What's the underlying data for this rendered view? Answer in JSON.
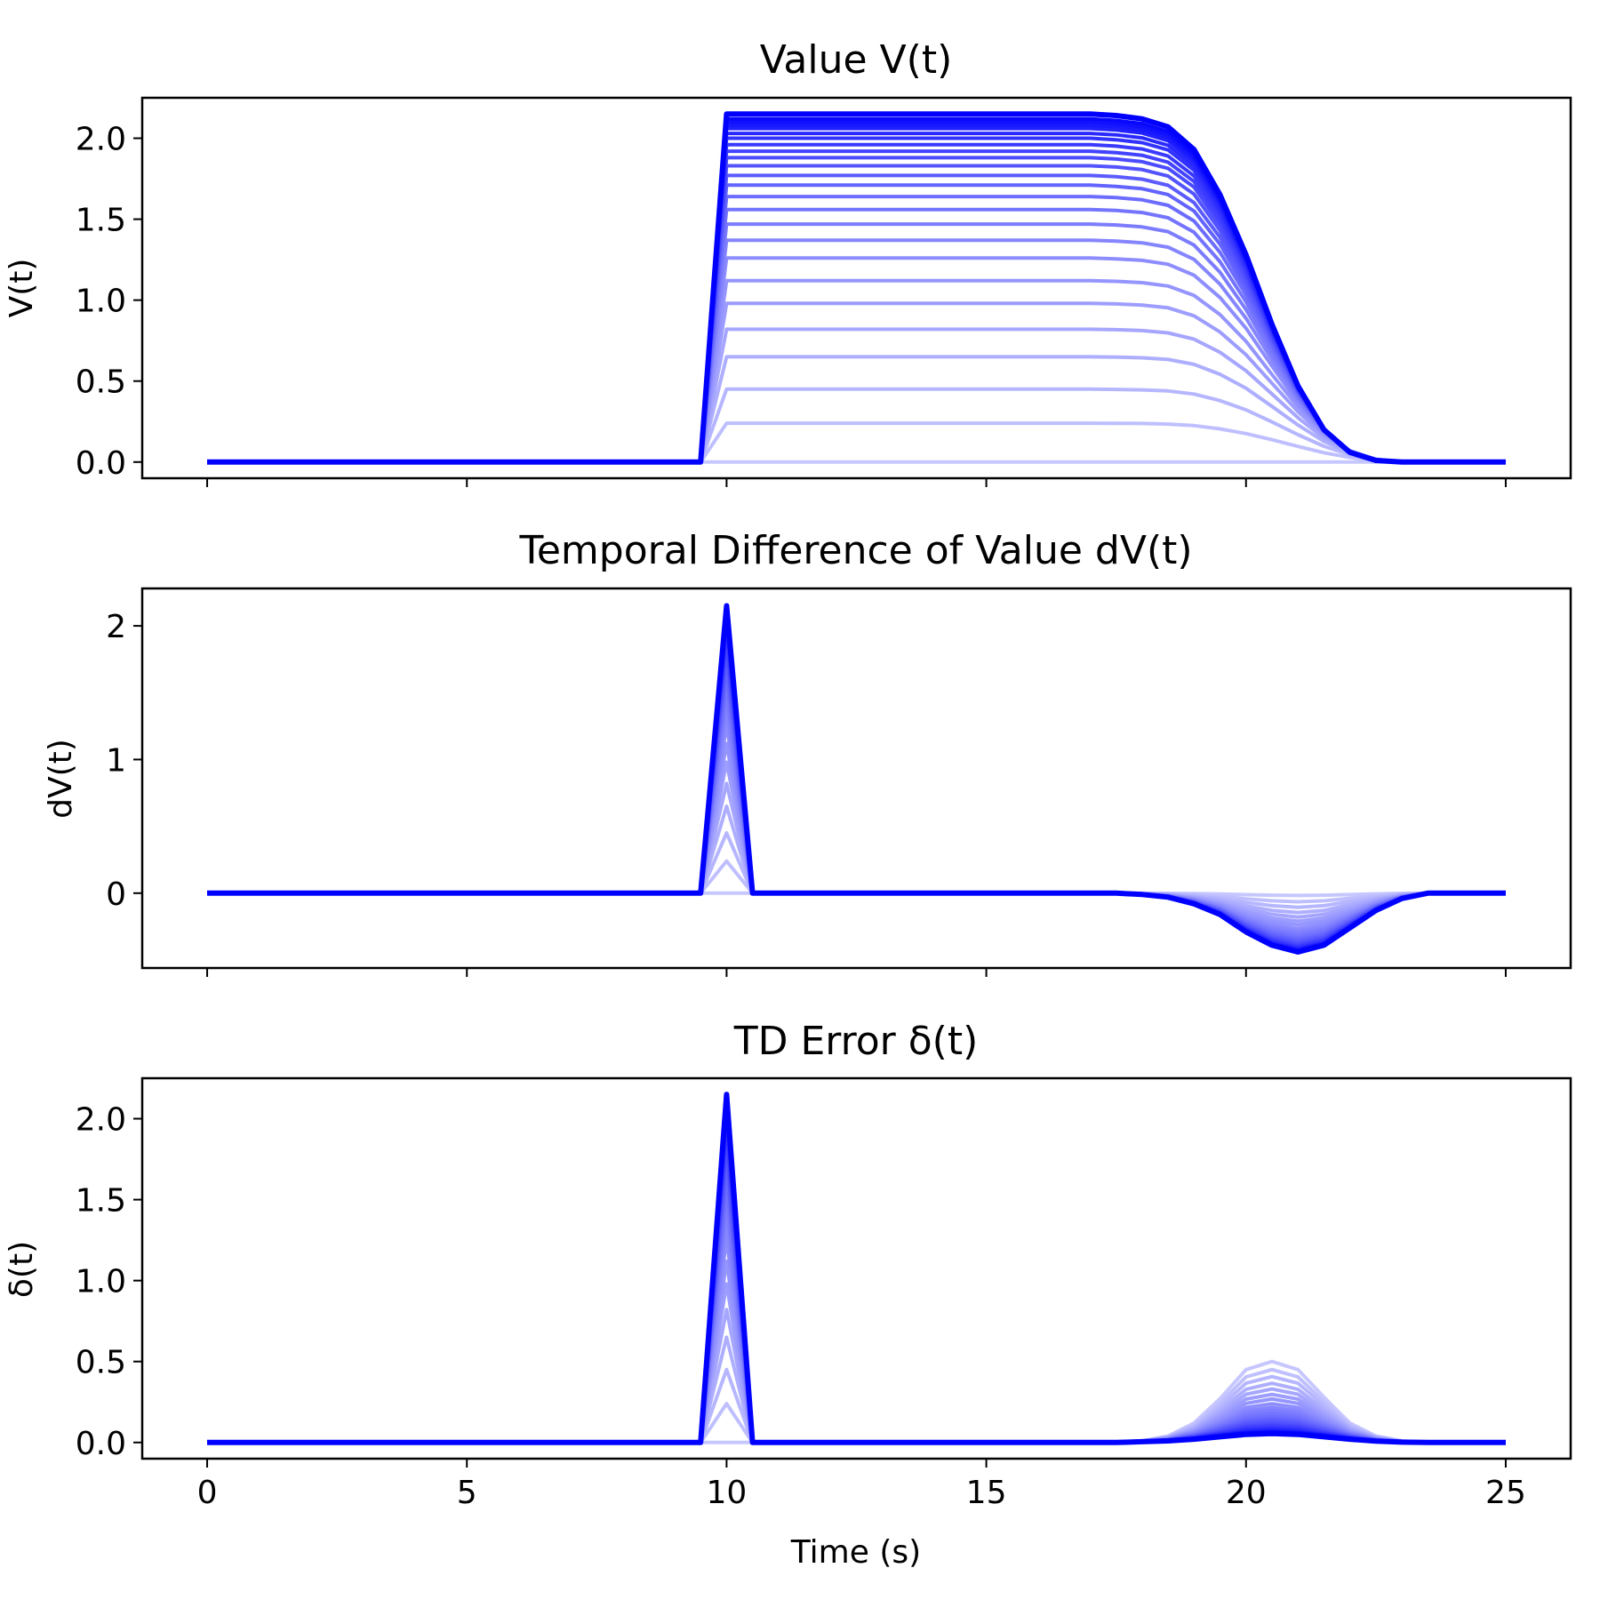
{
  "chart_data": [
    {
      "type": "line",
      "title": "Value V(t)",
      "ylabel": "V(t)",
      "xlabel": "",
      "xlim": [
        -1.25,
        26.25
      ],
      "ylim": [
        -0.1,
        2.25
      ],
      "xticks": [
        0,
        5,
        10,
        15,
        20,
        25
      ],
      "yticks": [
        0.0,
        0.5,
        1.0,
        1.5,
        2.0
      ],
      "ytick_labels": [
        "0.0",
        "0.5",
        "1.0",
        "1.5",
        "2.0"
      ],
      "show_xtick_labels": false,
      "series_count": 25,
      "series_color": "#0000ff",
      "series_family": "learning trials, light (early) to dark (late)",
      "x": [
        0,
        0.5,
        1,
        1.5,
        2,
        2.5,
        3,
        3.5,
        4,
        4.5,
        5,
        5.5,
        6,
        6.5,
        7,
        7.5,
        8,
        8.5,
        9,
        9.5,
        10,
        10.5,
        11,
        11.5,
        12,
        12.5,
        13,
        13.5,
        14,
        14.5,
        15,
        15.5,
        16,
        16.5,
        17,
        17.5,
        18,
        18.5,
        19,
        19.5,
        20,
        20.5,
        21,
        21.5,
        22,
        22.5,
        23,
        23.5,
        24,
        24.5,
        25
      ],
      "final_series": [
        0,
        0,
        0,
        0,
        0,
        0,
        0,
        0,
        0,
        0,
        0,
        0,
        0,
        0,
        0,
        0,
        0,
        0,
        0,
        0,
        2.15,
        2.15,
        2.15,
        2.15,
        2.15,
        2.15,
        2.15,
        2.15,
        2.15,
        2.15,
        2.15,
        2.15,
        2.15,
        2.15,
        2.15,
        2.14,
        2.12,
        2.07,
        1.93,
        1.65,
        1.28,
        0.85,
        0.47,
        0.2,
        0.06,
        0.01,
        0,
        0,
        0,
        0,
        0
      ],
      "plateau_levels": [
        0.0,
        0.24,
        0.45,
        0.65,
        0.82,
        0.98,
        1.12,
        1.26,
        1.37,
        1.47,
        1.56,
        1.64,
        1.71,
        1.77,
        1.83,
        1.88,
        1.92,
        1.96,
        2.0,
        2.03,
        2.06,
        2.08,
        2.1,
        2.12,
        2.15
      ]
    },
    {
      "type": "line",
      "title": "Temporal Difference of Value dV(t)",
      "ylabel": "dV(t)",
      "xlabel": "",
      "xlim": [
        -1.25,
        26.25
      ],
      "ylim": [
        -0.56,
        2.28
      ],
      "xticks": [
        0,
        5,
        10,
        15,
        20,
        25
      ],
      "yticks": [
        0,
        1,
        2
      ],
      "ytick_labels": [
        "0",
        "1",
        "2"
      ],
      "show_xtick_labels": false,
      "series_count": 25,
      "series_color": "#0000ff",
      "series_family": "learning trials, light (early) to dark (late)",
      "x": [
        0,
        0.5,
        1,
        1.5,
        2,
        2.5,
        3,
        3.5,
        4,
        4.5,
        5,
        5.5,
        6,
        6.5,
        7,
        7.5,
        8,
        8.5,
        9,
        9.5,
        10,
        10.5,
        11,
        11.5,
        12,
        12.5,
        13,
        13.5,
        14,
        14.5,
        15,
        15.5,
        16,
        16.5,
        17,
        17.5,
        18,
        18.5,
        19,
        19.5,
        20,
        20.5,
        21,
        21.5,
        22,
        22.5,
        23,
        23.5,
        24,
        24.5,
        25
      ],
      "final_series": [
        0,
        0,
        0,
        0,
        0,
        0,
        0,
        0,
        0,
        0,
        0,
        0,
        0,
        0,
        0,
        0,
        0,
        0,
        0,
        0,
        2.15,
        0,
        0,
        0,
        0,
        0,
        0,
        0,
        0,
        0,
        0,
        0,
        0,
        0,
        0,
        0,
        -0.01,
        -0.03,
        -0.08,
        -0.16,
        -0.29,
        -0.39,
        -0.44,
        -0.39,
        -0.26,
        -0.13,
        -0.04,
        0,
        0,
        0,
        0
      ]
    },
    {
      "type": "line",
      "title": "TD Error δ(t)",
      "ylabel": "δ(t)",
      "xlabel": "Time (s)",
      "xlim": [
        -1.25,
        26.25
      ],
      "ylim": [
        -0.1,
        2.25
      ],
      "xticks": [
        0,
        5,
        10,
        15,
        20,
        25
      ],
      "xtick_labels": [
        "0",
        "5",
        "10",
        "15",
        "20",
        "25"
      ],
      "yticks": [
        0.0,
        0.5,
        1.0,
        1.5,
        2.0
      ],
      "ytick_labels": [
        "0.0",
        "0.5",
        "1.0",
        "1.5",
        "2.0"
      ],
      "show_xtick_labels": true,
      "series_count": 25,
      "series_color": "#0000ff",
      "series_family": "learning trials, light (early) to dark (late)",
      "x": [
        0,
        0.5,
        1,
        1.5,
        2,
        2.5,
        3,
        3.5,
        4,
        4.5,
        5,
        5.5,
        6,
        6.5,
        7,
        7.5,
        8,
        8.5,
        9,
        9.5,
        10,
        10.5,
        11,
        11.5,
        12,
        12.5,
        13,
        13.5,
        14,
        14.5,
        15,
        15.5,
        16,
        16.5,
        17,
        17.5,
        18,
        18.5,
        19,
        19.5,
        20,
        20.5,
        21,
        21.5,
        22,
        22.5,
        23,
        23.5,
        24,
        24.5,
        25
      ],
      "first_series": [
        0,
        0,
        0,
        0,
        0,
        0,
        0,
        0,
        0,
        0,
        0,
        0,
        0,
        0,
        0,
        0,
        0,
        0,
        0,
        0,
        0,
        0,
        0,
        0,
        0,
        0,
        0,
        0,
        0,
        0,
        0,
        0,
        0,
        0,
        0,
        0,
        0.01,
        0.04,
        0.12,
        0.27,
        0.45,
        0.5,
        0.45,
        0.28,
        0.12,
        0.04,
        0.01,
        0,
        0,
        0,
        0
      ],
      "final_series": [
        0,
        0,
        0,
        0,
        0,
        0,
        0,
        0,
        0,
        0,
        0,
        0,
        0,
        0,
        0,
        0,
        0,
        0,
        0,
        0,
        2.15,
        0,
        0,
        0,
        0,
        0,
        0,
        0,
        0,
        0,
        0,
        0,
        0,
        0,
        0,
        0,
        0.005,
        0.01,
        0.02,
        0.035,
        0.05,
        0.055,
        0.05,
        0.035,
        0.02,
        0.008,
        0.002,
        0,
        0,
        0,
        0
      ]
    }
  ]
}
